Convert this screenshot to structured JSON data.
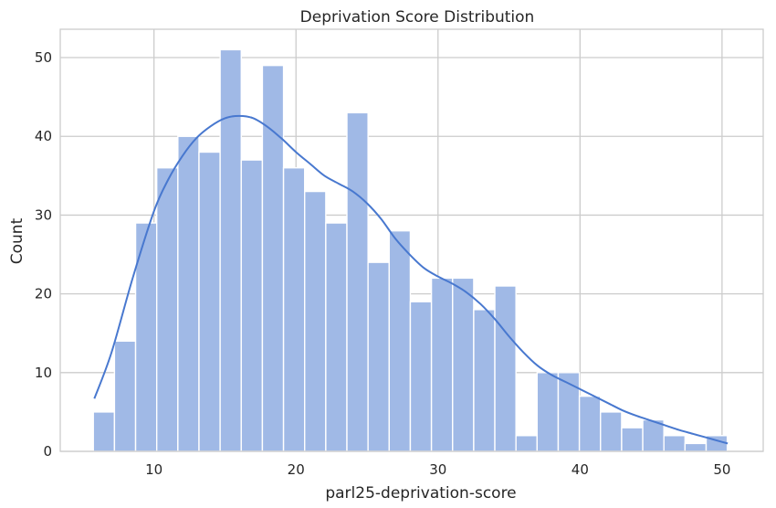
{
  "chart_data": {
    "type": "bar",
    "title": "Deprivation Score Distribution",
    "xlabel": "parl25-deprivation-score",
    "ylabel": "Count",
    "xlim": [
      3.4,
      52.9
    ],
    "ylim": [
      0,
      53.6
    ],
    "xticks": [
      10,
      20,
      30,
      40,
      50
    ],
    "yticks": [
      0,
      10,
      20,
      30,
      40,
      50
    ],
    "grid": true,
    "bins": {
      "start": 5.73,
      "width": 1.488,
      "counts": [
        5,
        14,
        29,
        36,
        40,
        38,
        51,
        37,
        49,
        36,
        33,
        29,
        43,
        24,
        28,
        19,
        22,
        22,
        18,
        21,
        2,
        10,
        10,
        7,
        5,
        3,
        4,
        2,
        1,
        2
      ]
    },
    "kde": {
      "x": [
        5.8,
        7,
        8.5,
        10,
        11,
        12,
        13,
        14,
        15,
        16,
        17,
        18,
        19,
        20,
        21,
        22,
        23,
        24,
        25,
        26,
        27,
        28,
        29,
        30,
        31,
        32,
        33,
        34,
        35,
        36,
        37,
        38,
        39,
        40,
        41,
        42,
        43,
        44,
        45,
        46,
        47,
        48,
        49,
        50,
        50.4
      ],
      "y": [
        6.7,
        12.5,
        22,
        30.5,
        34.5,
        37.5,
        39.8,
        41.3,
        42.3,
        42.6,
        42.3,
        41.2,
        39.7,
        38,
        36.5,
        35,
        34,
        33,
        31.5,
        29.5,
        27,
        25,
        23.3,
        22.2,
        21.3,
        20.2,
        18.7,
        16.8,
        14.6,
        12.6,
        10.9,
        9.7,
        8.8,
        7.9,
        7,
        6.1,
        5.2,
        4.5,
        3.9,
        3.3,
        2.7,
        2.2,
        1.7,
        1.2,
        1.0
      ]
    },
    "colors": {
      "bar_fill": "#a0b9e6",
      "bar_edge": "#ffffff",
      "kde_line": "#4878cf",
      "grid": "#cccccc",
      "axes_edge": "#cccccc"
    }
  }
}
